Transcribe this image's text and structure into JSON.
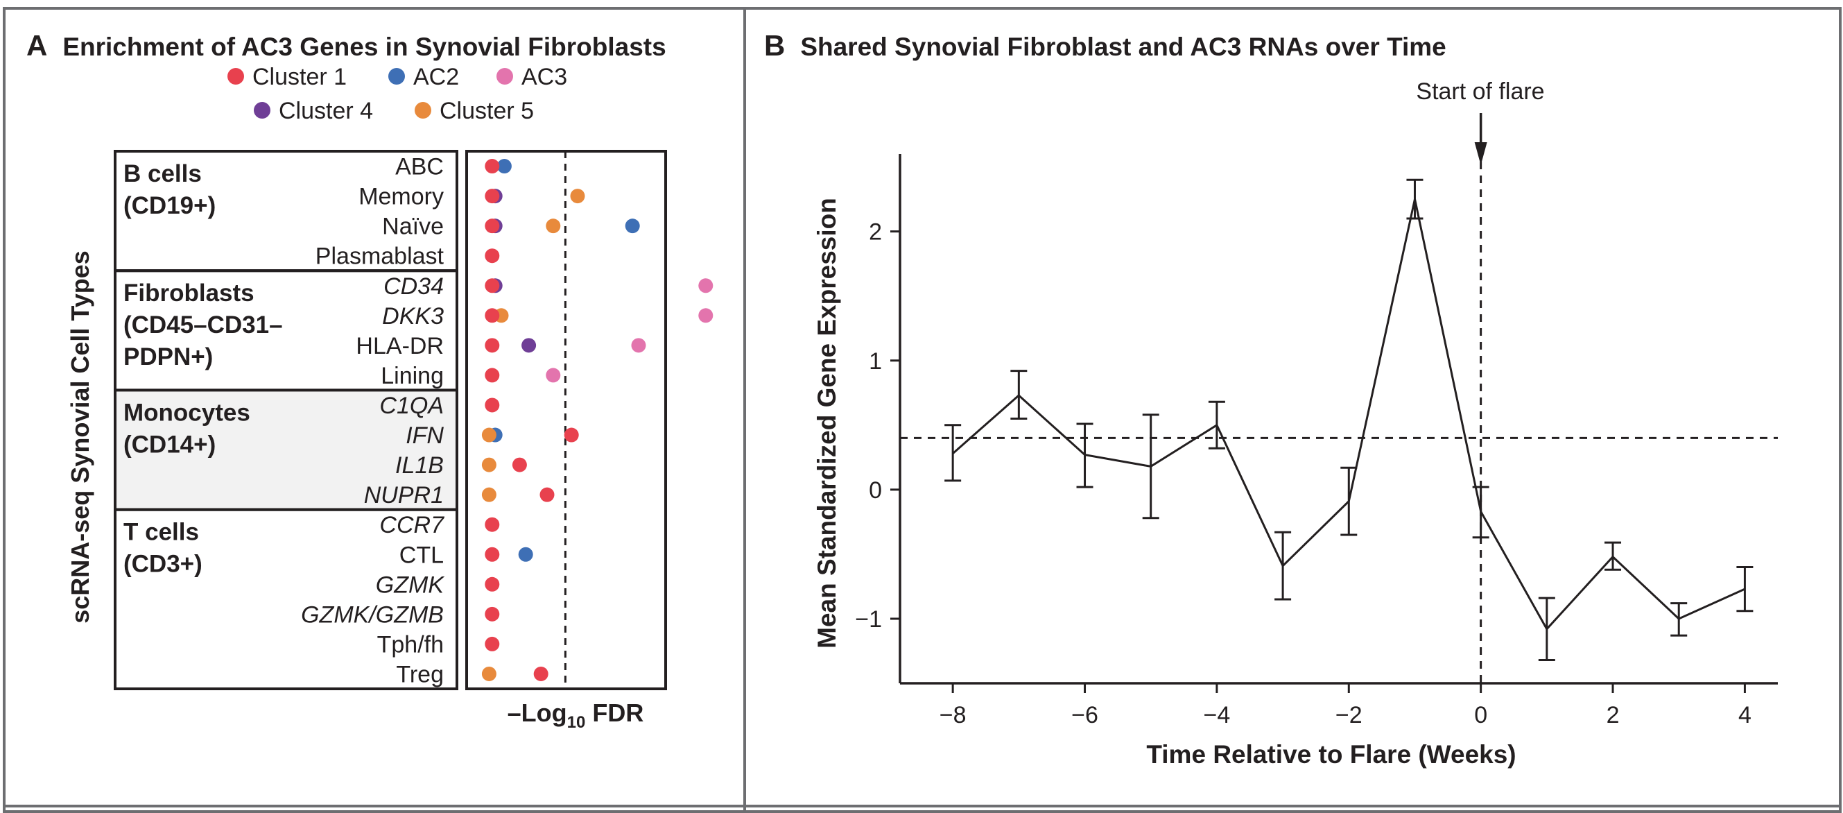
{
  "panel_a": {
    "letter": "A",
    "title": "Enrichment of AC3 Genes in Synovial Fibroblasts",
    "colors": {
      "Cluster 1": "#e8414e",
      "AC2": "#3e6fb5",
      "AC3": "#e374ad",
      "Cluster 4": "#6f3e96",
      "Cluster 5": "#e88a3c"
    },
    "y_axis_label": "scRNA-seq Synovial Cell Types",
    "x_axis_label_prefix": "–Log",
    "x_axis_label_sub": "10",
    "x_axis_label_suffix": " FDR"
  },
  "panel_b": {
    "letter": "B",
    "title": "Shared Synovial Fibroblast and AC3 RNAs over Time",
    "annotation": "Start of flare"
  },
  "chart_data": [
    {
      "type": "scatter",
      "title": "Enrichment of AC3 Genes in Synovial Fibroblasts",
      "ylabel": "scRNA-seq Synovial Cell Types",
      "xlabel": "–Log10 FDR",
      "legend": [
        "Cluster 1",
        "AC2",
        "AC3",
        "Cluster 4",
        "Cluster 5"
      ],
      "legend_position": "top",
      "x_scale": "–Log10 FDR (no numeric ticks shown)",
      "threshold_x": 1.3,
      "groups": [
        {
          "name": "B cells\n(CD19+)",
          "lines": [
            "B cells",
            "(CD19+)"
          ],
          "rows": [
            {
              "label": "ABC",
              "italic": false,
              "points": [
                {
                  "series": "AC2",
                  "x": 0.3
                },
                {
                  "series": "Cluster 1",
                  "x": 0.1
                }
              ]
            },
            {
              "label": "Memory",
              "italic": false,
              "points": [
                {
                  "series": "Cluster 5",
                  "x": 1.5
                },
                {
                  "series": "Cluster 4",
                  "x": 0.15
                },
                {
                  "series": "Cluster 1",
                  "x": 0.1
                }
              ]
            },
            {
              "label": "Naïve",
              "italic": false,
              "points": [
                {
                  "series": "AC2",
                  "x": 2.4
                },
                {
                  "series": "Cluster 5",
                  "x": 1.1
                },
                {
                  "series": "Cluster 4",
                  "x": 0.15
                },
                {
                  "series": "Cluster 1",
                  "x": 0.1
                }
              ]
            },
            {
              "label": "Plasmablast",
              "italic": false,
              "points": [
                {
                  "series": "Cluster 1",
                  "x": 0.1
                }
              ]
            }
          ]
        },
        {
          "name": "Fibroblasts\n(CD45–CD31–\nPDPN+)",
          "lines": [
            "Fibroblasts",
            "(CD45–CD31–",
            "PDPN+)"
          ],
          "rows": [
            {
              "label": "CD34",
              "italic": true,
              "points": [
                {
                  "series": "AC3",
                  "x": 3.6
                },
                {
                  "series": "Cluster 4",
                  "x": 0.15
                },
                {
                  "series": "Cluster 1",
                  "x": 0.1
                }
              ]
            },
            {
              "label": "DKK3",
              "italic": true,
              "points": [
                {
                  "series": "AC3",
                  "x": 3.6
                },
                {
                  "series": "Cluster 5",
                  "x": 0.25
                },
                {
                  "series": "Cluster 1",
                  "x": 0.1
                }
              ]
            },
            {
              "label": "HLA-DR",
              "italic": false,
              "points": [
                {
                  "series": "AC3",
                  "x": 2.5
                },
                {
                  "series": "Cluster 4",
                  "x": 0.7
                },
                {
                  "series": "Cluster 1",
                  "x": 0.1
                }
              ]
            },
            {
              "label": "Lining",
              "italic": false,
              "points": [
                {
                  "series": "AC3",
                  "x": 1.1
                },
                {
                  "series": "Cluster 1",
                  "x": 0.1
                }
              ]
            }
          ]
        },
        {
          "name": "Monocytes\n(CD14+)",
          "lines": [
            "Monocytes",
            "(CD14+)"
          ],
          "shaded": true,
          "rows": [
            {
              "label": "C1QA",
              "italic": true,
              "points": [
                {
                  "series": "Cluster 1",
                  "x": 0.1
                }
              ]
            },
            {
              "label": "IFN",
              "italic": true,
              "points": [
                {
                  "series": "Cluster 1",
                  "x": 1.4
                },
                {
                  "series": "AC2",
                  "x": 0.15
                },
                {
                  "series": "Cluster 5",
                  "x": 0.05
                }
              ]
            },
            {
              "label": "IL1B",
              "italic": true,
              "points": [
                {
                  "series": "Cluster 1",
                  "x": 0.55
                },
                {
                  "series": "Cluster 5",
                  "x": 0.05
                }
              ]
            },
            {
              "label": "NUPR1",
              "italic": true,
              "points": [
                {
                  "series": "Cluster 1",
                  "x": 1.0
                },
                {
                  "series": "Cluster 5",
                  "x": 0.05
                }
              ]
            }
          ]
        },
        {
          "name": "T cells\n(CD3+)",
          "lines": [
            "T cells",
            "(CD3+)"
          ],
          "rows": [
            {
              "label": "CCR7",
              "italic": true,
              "points": [
                {
                  "series": "Cluster 1",
                  "x": 0.1
                }
              ]
            },
            {
              "label": "CTL",
              "italic": false,
              "points": [
                {
                  "series": "AC2",
                  "x": 0.65
                },
                {
                  "series": "Cluster 1",
                  "x": 0.1
                }
              ]
            },
            {
              "label": "GZMK",
              "italic": true,
              "points": [
                {
                  "series": "Cluster 1",
                  "x": 0.1
                }
              ]
            },
            {
              "label": "GZMK/GZMB",
              "italic": true,
              "points": [
                {
                  "series": "Cluster 1",
                  "x": 0.1
                }
              ]
            },
            {
              "label": "Tph/fh",
              "italic": false,
              "points": [
                {
                  "series": "Cluster 1",
                  "x": 0.1
                }
              ]
            },
            {
              "label": "Treg",
              "italic": false,
              "points": [
                {
                  "series": "Cluster 1",
                  "x": 0.9
                },
                {
                  "series": "Cluster 5",
                  "x": 0.05
                }
              ]
            }
          ]
        }
      ]
    },
    {
      "type": "line",
      "title": "Shared Synovial Fibroblast and AC3 RNAs over Time",
      "xlabel": "Time Relative to Flare (Weeks)",
      "ylabel": "Mean Standardized Gene Expression",
      "xlim": [
        -8.8,
        4.5
      ],
      "ylim": [
        -1.5,
        2.6
      ],
      "x_ticks": [
        -8,
        -6,
        -4,
        -2,
        0,
        2,
        4
      ],
      "x_tick_labels": [
        "−8",
        "−6",
        "−4",
        "−2",
        "0",
        "2",
        "4"
      ],
      "y_ticks": [
        -1,
        0,
        1,
        2
      ],
      "y_tick_labels": [
        "−1",
        "0",
        "1",
        "2"
      ],
      "reference_line_y": 0.4,
      "reference_line_x": 0,
      "grid": false,
      "points": [
        {
          "x": -8,
          "y": 0.28,
          "lo": 0.07,
          "hi": 0.5
        },
        {
          "x": -7,
          "y": 0.73,
          "lo": 0.55,
          "hi": 0.92
        },
        {
          "x": -6,
          "y": 0.27,
          "lo": 0.02,
          "hi": 0.51
        },
        {
          "x": -5,
          "y": 0.18,
          "lo": -0.22,
          "hi": 0.58
        },
        {
          "x": -4,
          "y": 0.5,
          "lo": 0.32,
          "hi": 0.68
        },
        {
          "x": -3,
          "y": -0.59,
          "lo": -0.85,
          "hi": -0.33
        },
        {
          "x": -2,
          "y": -0.09,
          "lo": -0.35,
          "hi": 0.17
        },
        {
          "x": -1,
          "y": 2.25,
          "lo": 2.1,
          "hi": 2.4
        },
        {
          "x": 0,
          "y": -0.17,
          "lo": -0.37,
          "hi": 0.02
        },
        {
          "x": 1,
          "y": -1.08,
          "lo": -1.32,
          "hi": -0.84
        },
        {
          "x": 2,
          "y": -0.52,
          "lo": -0.62,
          "hi": -0.41
        },
        {
          "x": 3,
          "y": -1.0,
          "lo": -1.13,
          "hi": -0.88
        },
        {
          "x": 4,
          "y": -0.77,
          "lo": -0.94,
          "hi": -0.6
        }
      ]
    }
  ]
}
